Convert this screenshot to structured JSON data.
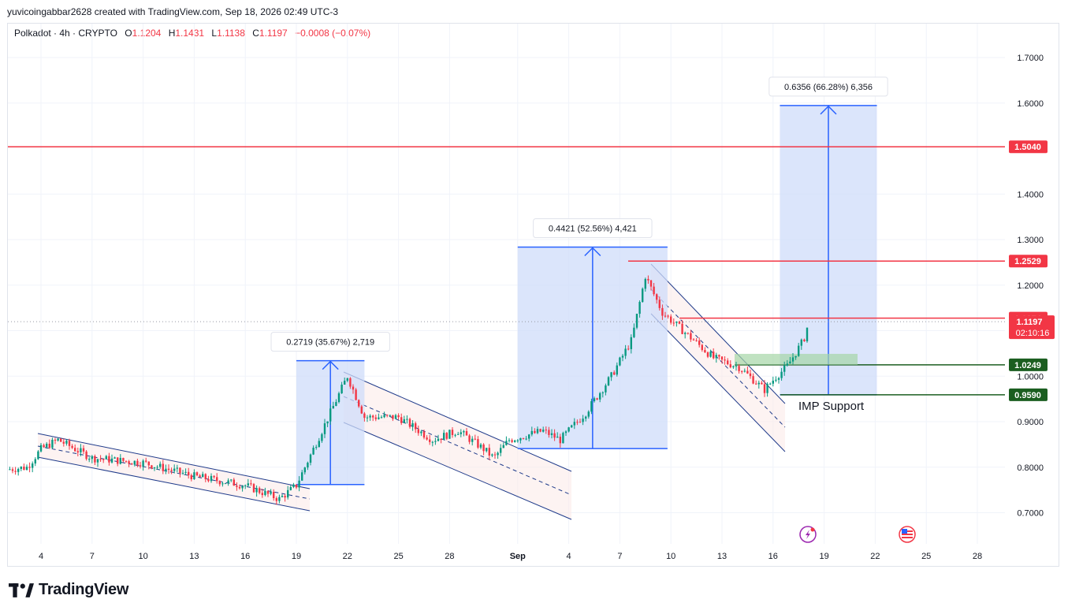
{
  "header": {
    "attribution": "yuvicoingabbar2628 created with TradingView.com, Sep 18, 2026 02:49 UTC-3"
  },
  "legend": {
    "symbol": "Polkadot · 4h · CRYPTO",
    "open_label": "O",
    "open": "1.1204",
    "high_label": "H",
    "high": "1.1431",
    "low_label": "L",
    "low": "1.1138",
    "close_label": "C",
    "close": "1.1197",
    "change": "−0.0008 (−0.07%)"
  },
  "colors": {
    "up": "#089981",
    "down": "#f23645",
    "channel": "#1e3a8a",
    "measure_fill": "#cfdcf9",
    "measure_line": "#2962ff",
    "resistance": "#f23645",
    "support": "#1b5e20"
  },
  "chart_data": {
    "type": "candlestick",
    "ylim": [
      0.64,
      1.79
    ],
    "y_ticks": [
      "1.7000",
      "1.6000",
      "1.4000",
      "1.3000",
      "1.2000",
      "1.0000",
      "0.9000",
      "0.8000",
      "0.7000"
    ],
    "y_tick_values": [
      1.7,
      1.6,
      1.4,
      1.3,
      1.2,
      1.0,
      0.9,
      0.8,
      0.7
    ],
    "x_ticks": [
      "4",
      "7",
      "10",
      "13",
      "16",
      "19",
      "22",
      "25",
      "28",
      "Sep",
      "4",
      "7",
      "10",
      "13",
      "16",
      "19",
      "22",
      "25",
      "28"
    ],
    "x_tick_days": [
      4,
      7,
      10,
      13,
      16,
      19,
      22,
      25,
      28,
      32,
      35,
      38,
      41,
      44,
      47,
      50,
      53,
      56,
      59
    ],
    "x_range_days": [
      2.0,
      63.0
    ],
    "price_path": [
      {
        "day": 2.0,
        "close": 0.795
      },
      {
        "day": 3.2,
        "close": 0.8
      },
      {
        "day": 4.0,
        "close": 0.84
      },
      {
        "day": 5.0,
        "close": 0.86
      },
      {
        "day": 7.0,
        "close": 0.82
      },
      {
        "day": 10.0,
        "close": 0.81
      },
      {
        "day": 13.0,
        "close": 0.78
      },
      {
        "day": 16.0,
        "close": 0.76
      },
      {
        "day": 18.0,
        "close": 0.73
      },
      {
        "day": 19.0,
        "close": 0.76
      },
      {
        "day": 21.0,
        "close": 0.92
      },
      {
        "day": 22.0,
        "close": 1.0
      },
      {
        "day": 23.0,
        "close": 0.91
      },
      {
        "day": 25.0,
        "close": 0.91
      },
      {
        "day": 27.0,
        "close": 0.86
      },
      {
        "day": 28.5,
        "close": 0.88
      },
      {
        "day": 30.0,
        "close": 0.84
      },
      {
        "day": 30.6,
        "close": 0.82
      },
      {
        "day": 31.5,
        "close": 0.86
      },
      {
        "day": 33.5,
        "close": 0.88
      },
      {
        "day": 34.5,
        "close": 0.86
      },
      {
        "day": 36.0,
        "close": 0.92
      },
      {
        "day": 37.5,
        "close": 1.0
      },
      {
        "day": 38.7,
        "close": 1.08
      },
      {
        "day": 39.5,
        "close": 1.22
      },
      {
        "day": 40.5,
        "close": 1.14
      },
      {
        "day": 42.0,
        "close": 1.09
      },
      {
        "day": 43.5,
        "close": 1.04
      },
      {
        "day": 45.0,
        "close": 1.02
      },
      {
        "day": 46.5,
        "close": 0.97
      },
      {
        "day": 47.2,
        "close": 1.0
      },
      {
        "day": 47.8,
        "close": 1.02
      },
      {
        "day": 48.8,
        "close": 1.08
      },
      {
        "day": 49.1,
        "close": 1.1197
      }
    ],
    "horizontal_levels": [
      {
        "price": 1.504,
        "label": "1.5040",
        "kind": "resistance"
      },
      {
        "price": 1.2529,
        "label": "1.2529",
        "kind": "resistance"
      },
      {
        "price": 1.1274,
        "label": "1.1274",
        "kind": "resistance"
      },
      {
        "price": 1.0249,
        "label": "1.0249",
        "kind": "support"
      },
      {
        "price": 0.959,
        "label": "0.9590",
        "kind": "support"
      }
    ],
    "current_price": {
      "label": "1.1197",
      "countdown": "02:10:16"
    },
    "measurements": [
      {
        "label": "0.2719 (35.67%) 2,719",
        "day_start": 19.0,
        "day_end": 23.0,
        "price_low": 0.762,
        "price_high": 1.034
      },
      {
        "label": "0.4421 (52.56%) 4,421",
        "day_start": 32.0,
        "day_end": 40.8,
        "price_low": 0.841,
        "price_high": 1.2835
      },
      {
        "label": "0.6356 (66.28%) 6,356",
        "day_start": 47.4,
        "day_end": 53.1,
        "price_low": 0.959,
        "price_high": 1.5946
      }
    ],
    "annotations": [
      {
        "text": "IMP Support",
        "day": 48.5,
        "price": 0.938
      }
    ],
    "grid": true
  }
}
